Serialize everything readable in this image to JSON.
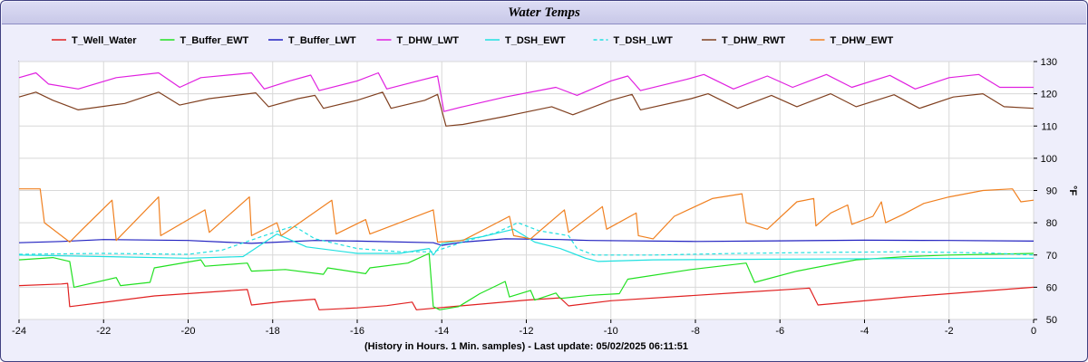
{
  "window": {
    "title": "Water Temps"
  },
  "footer": {
    "text": "(History in Hours. 1 Min. samples) - Last update: 05/02/2025 06:11:51"
  },
  "chart_data": {
    "type": "line",
    "title": "Water Temps",
    "xlabel": "(History in Hours. 1 Min. samples)",
    "ylabel": "°F",
    "xlim": [
      -24,
      0
    ],
    "ylim": [
      50,
      130
    ],
    "xticks": [
      -24,
      -22,
      -20,
      -18,
      -16,
      -14,
      -12,
      -10,
      -8,
      -6,
      -4,
      -2,
      0
    ],
    "yticks": [
      50,
      60,
      70,
      80,
      90,
      100,
      110,
      120,
      130
    ],
    "grid": true,
    "legend_position": "top",
    "series": [
      {
        "name": "T_Well_Water",
        "color": "#e02020",
        "dash": false,
        "points": [
          [
            -24,
            60.5
          ],
          [
            -23,
            61
          ],
          [
            -22.85,
            61.2
          ],
          [
            -22.8,
            54
          ],
          [
            -22,
            55.3
          ],
          [
            -20.8,
            57.3
          ],
          [
            -18.6,
            59.3
          ],
          [
            -18.5,
            54.5
          ],
          [
            -17.8,
            55.5
          ],
          [
            -17,
            56.3
          ],
          [
            -16.9,
            53
          ],
          [
            -16,
            53.6
          ],
          [
            -15.3,
            54.3
          ],
          [
            -14.7,
            55.4
          ],
          [
            -14.6,
            53
          ],
          [
            -12,
            56
          ],
          [
            -11.2,
            56.7
          ],
          [
            -11,
            54.2
          ],
          [
            -10,
            55.8
          ],
          [
            -7,
            58.3
          ],
          [
            -5.3,
            59.7
          ],
          [
            -5.1,
            54.5
          ],
          [
            -3,
            57
          ],
          [
            0,
            60
          ]
        ]
      },
      {
        "name": "T_Buffer_EWT",
        "color": "#20e020",
        "dash": false,
        "points": [
          [
            -24,
            68.5
          ],
          [
            -23.2,
            69.2
          ],
          [
            -22.8,
            68
          ],
          [
            -22.7,
            60
          ],
          [
            -21.7,
            63
          ],
          [
            -21.6,
            60.5
          ],
          [
            -20.9,
            61.5
          ],
          [
            -20.8,
            66
          ],
          [
            -19.7,
            68.5
          ],
          [
            -19.6,
            66.5
          ],
          [
            -18.6,
            67.5
          ],
          [
            -18.5,
            65
          ],
          [
            -17.7,
            65.5
          ],
          [
            -16.8,
            64
          ],
          [
            -16.7,
            66
          ],
          [
            -15.8,
            64.2
          ],
          [
            -15.7,
            66
          ],
          [
            -14.8,
            67.5
          ],
          [
            -14.3,
            70.5
          ],
          [
            -14.2,
            54
          ],
          [
            -14.05,
            53
          ],
          [
            -13.6,
            54
          ],
          [
            -13.1,
            58
          ],
          [
            -12.5,
            61.8
          ],
          [
            -12.4,
            57
          ],
          [
            -11.9,
            59
          ],
          [
            -11.8,
            56
          ],
          [
            -11.3,
            58.2
          ],
          [
            -11.2,
            56.5
          ],
          [
            -10.5,
            57.5
          ],
          [
            -9.8,
            58
          ],
          [
            -9.6,
            62.5
          ],
          [
            -8.1,
            65.5
          ],
          [
            -6.8,
            67.5
          ],
          [
            -6.6,
            61.5
          ],
          [
            -5.6,
            65
          ],
          [
            -4.2,
            68.5
          ],
          [
            -3,
            69.5
          ],
          [
            -2,
            70
          ],
          [
            0,
            70.5
          ]
        ]
      },
      {
        "name": "T_Buffer_LWT",
        "color": "#2020c0",
        "dash": false,
        "points": [
          [
            -24,
            73.8
          ],
          [
            -23,
            74.2
          ],
          [
            -22,
            74.8
          ],
          [
            -20,
            74.5
          ],
          [
            -18.5,
            73.6
          ],
          [
            -17,
            74.5
          ],
          [
            -16,
            74.3
          ],
          [
            -14.2,
            73.8
          ],
          [
            -14,
            73
          ],
          [
            -13.5,
            74
          ],
          [
            -12.5,
            75
          ],
          [
            -11.2,
            74.8
          ],
          [
            -10.5,
            74.5
          ],
          [
            -8,
            74.2
          ],
          [
            -6,
            74.4
          ],
          [
            -4,
            74.6
          ],
          [
            -2,
            74.5
          ],
          [
            0,
            74.3
          ]
        ]
      },
      {
        "name": "T_DHW_LWT",
        "color": "#e020e0",
        "dash": false,
        "points": [
          [
            -24,
            125
          ],
          [
            -23.6,
            126.5
          ],
          [
            -23.3,
            123
          ],
          [
            -22.6,
            121.5
          ],
          [
            -21.7,
            125
          ],
          [
            -20.7,
            126.5
          ],
          [
            -20.2,
            122
          ],
          [
            -19.7,
            125
          ],
          [
            -18.5,
            126.5
          ],
          [
            -18.2,
            121.5
          ],
          [
            -17.6,
            124
          ],
          [
            -17.1,
            125.8
          ],
          [
            -16.9,
            121
          ],
          [
            -16,
            124
          ],
          [
            -15.5,
            126.5
          ],
          [
            -15.3,
            121.5
          ],
          [
            -14.5,
            124.2
          ],
          [
            -14.1,
            125.5
          ],
          [
            -13.95,
            114.5
          ],
          [
            -13.5,
            116
          ],
          [
            -12.5,
            119
          ],
          [
            -11.3,
            122
          ],
          [
            -10.8,
            119.5
          ],
          [
            -10,
            124
          ],
          [
            -9.6,
            125.5
          ],
          [
            -9.3,
            121
          ],
          [
            -8.2,
            124.5
          ],
          [
            -7.8,
            126
          ],
          [
            -7.1,
            121.5
          ],
          [
            -6.3,
            125.5
          ],
          [
            -5.7,
            122
          ],
          [
            -4.9,
            126
          ],
          [
            -4.3,
            122
          ],
          [
            -3.4,
            125.7
          ],
          [
            -2.8,
            121.5
          ],
          [
            -2,
            125
          ],
          [
            -1.3,
            126
          ],
          [
            -0.8,
            122
          ],
          [
            0,
            122
          ]
        ]
      },
      {
        "name": "T_DSH_EWT",
        "color": "#20e0e0",
        "dash": false,
        "points": [
          [
            -24,
            70
          ],
          [
            -22,
            69.5
          ],
          [
            -20,
            69
          ],
          [
            -18.7,
            69.5
          ],
          [
            -17.9,
            76.5
          ],
          [
            -17.2,
            72.5
          ],
          [
            -16,
            70.5
          ],
          [
            -15,
            70.5
          ],
          [
            -14.3,
            72
          ],
          [
            -14.2,
            70
          ],
          [
            -14,
            73.5
          ],
          [
            -13,
            75.8
          ],
          [
            -12.3,
            78
          ],
          [
            -11.8,
            74
          ],
          [
            -11.2,
            72
          ],
          [
            -10.6,
            69
          ],
          [
            -10.3,
            68
          ],
          [
            -9,
            68.5
          ],
          [
            -6,
            68.7
          ],
          [
            -3,
            68.9
          ],
          [
            0,
            69
          ]
        ]
      },
      {
        "name": "T_DSH_LWT",
        "color": "#20e0e0",
        "dash": true,
        "points": [
          [
            -24,
            70.2
          ],
          [
            -22,
            70.5
          ],
          [
            -20,
            70.2
          ],
          [
            -19.2,
            71.5
          ],
          [
            -18.2,
            76
          ],
          [
            -17.5,
            79
          ],
          [
            -17,
            75
          ],
          [
            -16,
            72
          ],
          [
            -15,
            71
          ],
          [
            -14.2,
            71
          ],
          [
            -13.5,
            74
          ],
          [
            -12.7,
            77
          ],
          [
            -12.2,
            80
          ],
          [
            -11.7,
            77.5
          ],
          [
            -11,
            76
          ],
          [
            -10.8,
            72
          ],
          [
            -10.4,
            70
          ],
          [
            -9,
            70
          ],
          [
            -7,
            70.5
          ],
          [
            -5,
            70.8
          ],
          [
            -3,
            71
          ],
          [
            -1,
            70.6
          ],
          [
            0,
            70
          ]
        ]
      },
      {
        "name": "T_DHW_RWT",
        "color": "#804020",
        "dash": false,
        "points": [
          [
            -24,
            119
          ],
          [
            -23.6,
            120.5
          ],
          [
            -23.2,
            118
          ],
          [
            -22.6,
            115
          ],
          [
            -21.5,
            117
          ],
          [
            -20.7,
            120.5
          ],
          [
            -20.2,
            116.5
          ],
          [
            -19.5,
            118.5
          ],
          [
            -18.4,
            120.3
          ],
          [
            -18.1,
            116
          ],
          [
            -17.4,
            118.5
          ],
          [
            -17,
            119.5
          ],
          [
            -16.8,
            115.5
          ],
          [
            -16,
            118
          ],
          [
            -15.4,
            120.5
          ],
          [
            -15.2,
            115.5
          ],
          [
            -14.4,
            118
          ],
          [
            -14.1,
            119.8
          ],
          [
            -13.9,
            110
          ],
          [
            -13.5,
            110.5
          ],
          [
            -12.5,
            113
          ],
          [
            -11.4,
            116
          ],
          [
            -10.9,
            113.5
          ],
          [
            -10,
            118
          ],
          [
            -9.5,
            119.8
          ],
          [
            -9.3,
            115
          ],
          [
            -8.1,
            118.5
          ],
          [
            -7.7,
            120
          ],
          [
            -7,
            115.5
          ],
          [
            -6.2,
            119.5
          ],
          [
            -5.6,
            116
          ],
          [
            -4.8,
            120
          ],
          [
            -4.2,
            116
          ],
          [
            -3.3,
            119.7
          ],
          [
            -2.7,
            115.5
          ],
          [
            -1.9,
            119
          ],
          [
            -1.2,
            120
          ],
          [
            -0.7,
            116
          ],
          [
            0,
            115.5
          ]
        ]
      },
      {
        "name": "T_DHW_EWT",
        "color": "#f08020",
        "dash": false,
        "points": [
          [
            -24,
            90.5
          ],
          [
            -23.5,
            90.5
          ],
          [
            -23.4,
            80
          ],
          [
            -22.8,
            74
          ],
          [
            -22.5,
            78
          ],
          [
            -21.8,
            87
          ],
          [
            -21.7,
            74.5
          ],
          [
            -20.7,
            88
          ],
          [
            -20.65,
            76
          ],
          [
            -19.6,
            84
          ],
          [
            -19.5,
            77
          ],
          [
            -18.55,
            88
          ],
          [
            -18.5,
            76
          ],
          [
            -17.9,
            80
          ],
          [
            -17.8,
            76
          ],
          [
            -16.6,
            87
          ],
          [
            -16.5,
            76.5
          ],
          [
            -15.8,
            81
          ],
          [
            -15.7,
            76.5
          ],
          [
            -14.2,
            84
          ],
          [
            -14.1,
            74
          ],
          [
            -13.5,
            74.5
          ],
          [
            -12.4,
            82
          ],
          [
            -12.3,
            76
          ],
          [
            -11.9,
            75
          ],
          [
            -11.1,
            84
          ],
          [
            -11,
            77
          ],
          [
            -10.2,
            85
          ],
          [
            -10.1,
            78
          ],
          [
            -9.4,
            83
          ],
          [
            -9.35,
            76
          ],
          [
            -9,
            75
          ],
          [
            -8.5,
            82
          ],
          [
            -7.6,
            87.5
          ],
          [
            -6.9,
            89
          ],
          [
            -6.8,
            80
          ],
          [
            -6.3,
            78
          ],
          [
            -5.6,
            86.5
          ],
          [
            -5.2,
            87.5
          ],
          [
            -5.15,
            79
          ],
          [
            -4.8,
            83
          ],
          [
            -4.4,
            85.5
          ],
          [
            -4.3,
            79.5
          ],
          [
            -3.8,
            82
          ],
          [
            -3.6,
            86.5
          ],
          [
            -3.5,
            80
          ],
          [
            -3.1,
            82.5
          ],
          [
            -2.6,
            86
          ],
          [
            -2,
            88
          ],
          [
            -1.2,
            90
          ],
          [
            -0.5,
            90.5
          ],
          [
            -0.3,
            86.5
          ],
          [
            0,
            87
          ]
        ]
      }
    ]
  }
}
